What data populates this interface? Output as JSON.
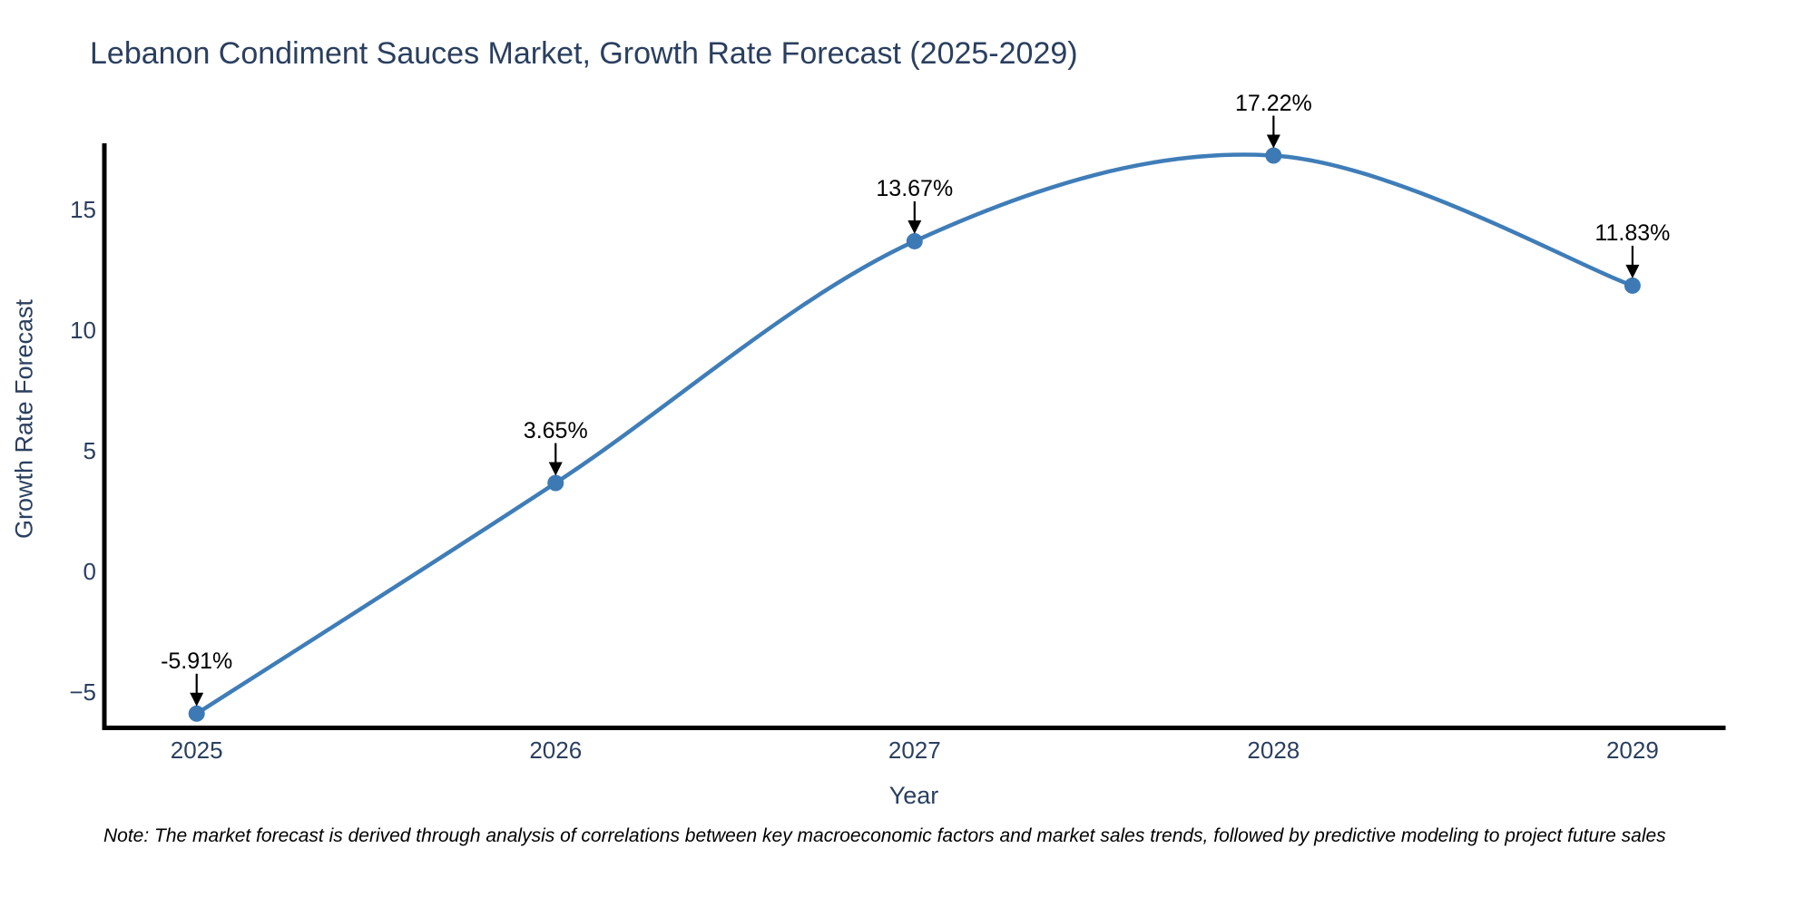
{
  "chart_data": {
    "type": "line",
    "title": "Lebanon Condiment Sauces Market, Growth Rate Forecast (2025-2029)",
    "xlabel": "Year",
    "ylabel": "Growth Rate Forecast",
    "categories": [
      "2025",
      "2026",
      "2027",
      "2028",
      "2029"
    ],
    "series": [
      {
        "name": "Growth Rate Forecast",
        "values": [
          -5.91,
          3.65,
          13.67,
          17.22,
          11.83
        ]
      }
    ],
    "point_labels": [
      "-5.91%",
      "3.65%",
      "13.67%",
      "17.22%",
      "11.83%"
    ],
    "yticks": [
      15,
      10,
      5,
      0,
      -5
    ],
    "ytick_labels": [
      "15",
      "10",
      "5",
      "0",
      "−5"
    ],
    "ylim": [
      -6.5,
      17.7
    ],
    "grid": false,
    "legend": null,
    "smooth": true,
    "annotations_style": "black-down-arrows",
    "line_color": "#3f7db8",
    "marker_color": "#3d7ab5",
    "axis_color": "#000000",
    "text_color": "#2a3f5f",
    "annotation_color": "#000000"
  },
  "note": {
    "text": "Note: The market forecast is derived through analysis of correlations between key macroeconomic factors and market sales trends, followed by predictive modeling to project future sales"
  }
}
